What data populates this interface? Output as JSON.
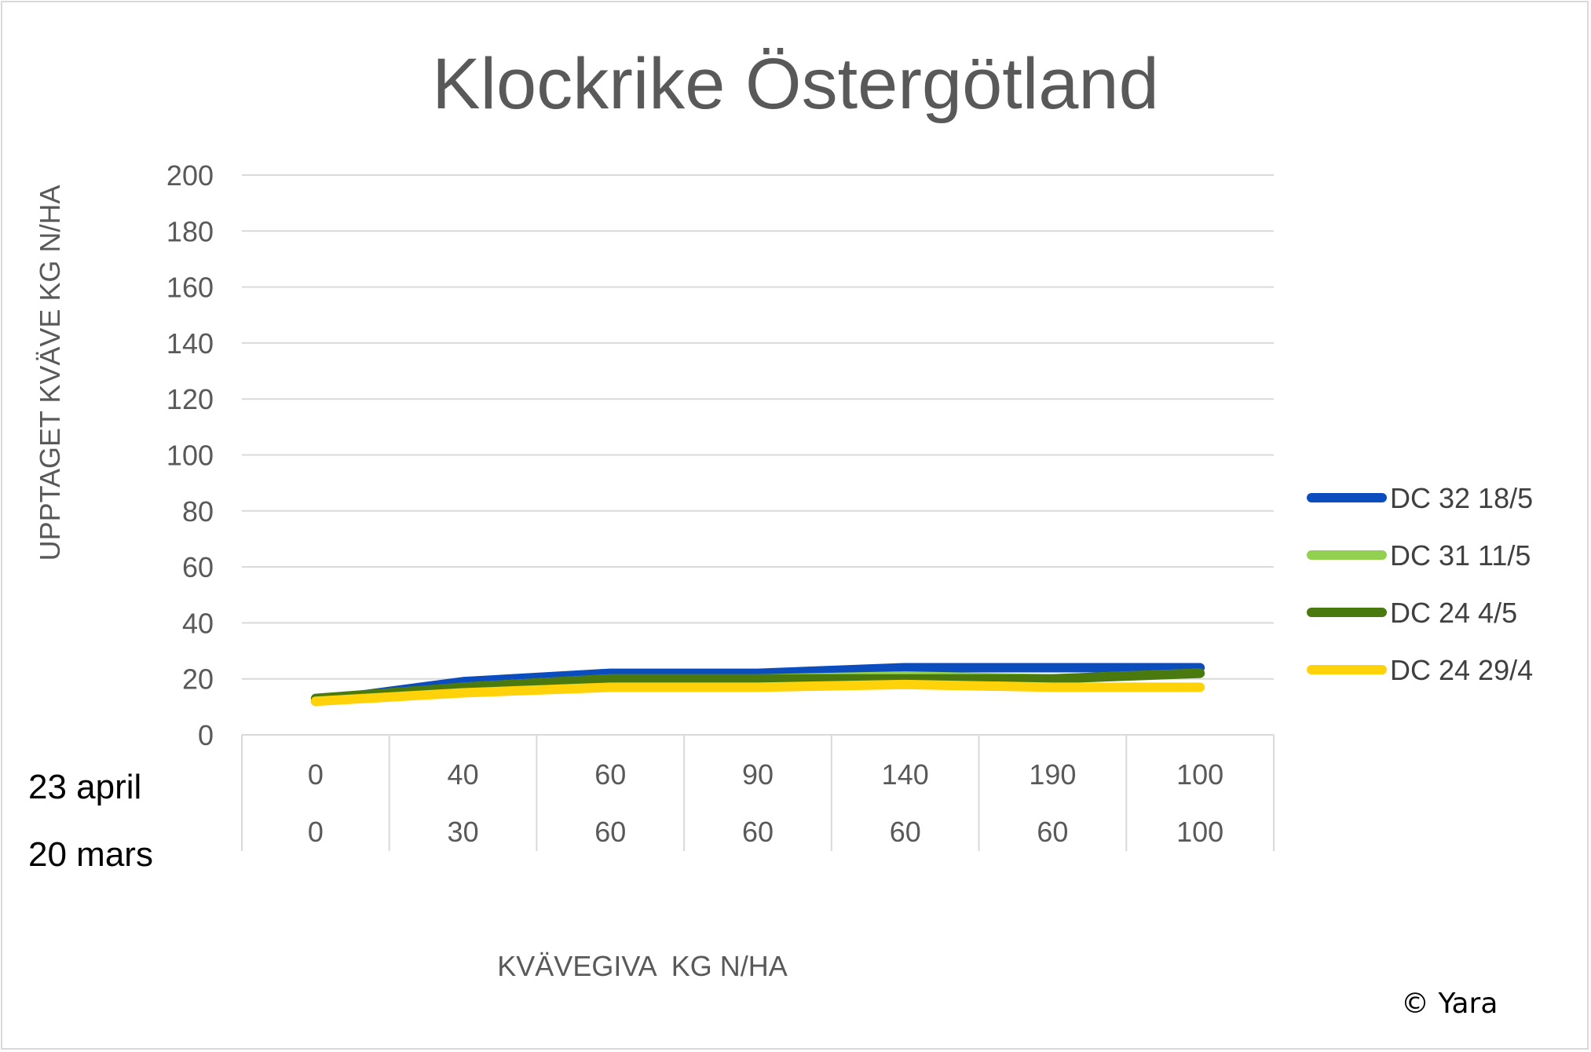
{
  "chart_data": {
    "type": "line",
    "title": "Klockrike Östergötland",
    "ylabel": "UPPTAGET KVÄVE KG N/HA",
    "xlabel": "KVÄVEGIVA  KG N/HA",
    "ylim": [
      0,
      200
    ],
    "yticks": [
      "0",
      "20",
      "40",
      "60",
      "80",
      "100",
      "120",
      "140",
      "160",
      "180",
      "200"
    ],
    "categories": [
      [
        "0",
        "0"
      ],
      [
        "40",
        "30"
      ],
      [
        "60",
        "60"
      ],
      [
        "90",
        "60"
      ],
      [
        "140",
        "60"
      ],
      [
        "190",
        "60"
      ],
      [
        "100",
        "100"
      ]
    ],
    "category_rows": [
      {
        "label": "23 april",
        "values": [
          "0",
          "40",
          "60",
          "90",
          "140",
          "190",
          "100"
        ]
      },
      {
        "label": "20 mars",
        "values": [
          "0",
          "30",
          "60",
          "60",
          "60",
          "60",
          "100"
        ]
      }
    ],
    "grid": true,
    "legend": "right",
    "series": [
      {
        "name": "DC 32 18/5",
        "color": "#0b4dbe",
        "values": [
          12,
          19,
          22,
          22,
          24,
          24,
          24
        ]
      },
      {
        "name": "DC 31 11/5",
        "color": "#92d050",
        "values": [
          12,
          17,
          20,
          20,
          21,
          20,
          22
        ]
      },
      {
        "name": "DC 24 4/5",
        "color": "#4a7a0f",
        "values": [
          13,
          17,
          20,
          20,
          20,
          20,
          22
        ]
      },
      {
        "name": "DC 24 29/4",
        "color": "#ffd20a",
        "values": [
          12,
          15,
          17,
          17,
          18,
          17,
          17
        ]
      }
    ]
  },
  "copyright": "© Yara"
}
